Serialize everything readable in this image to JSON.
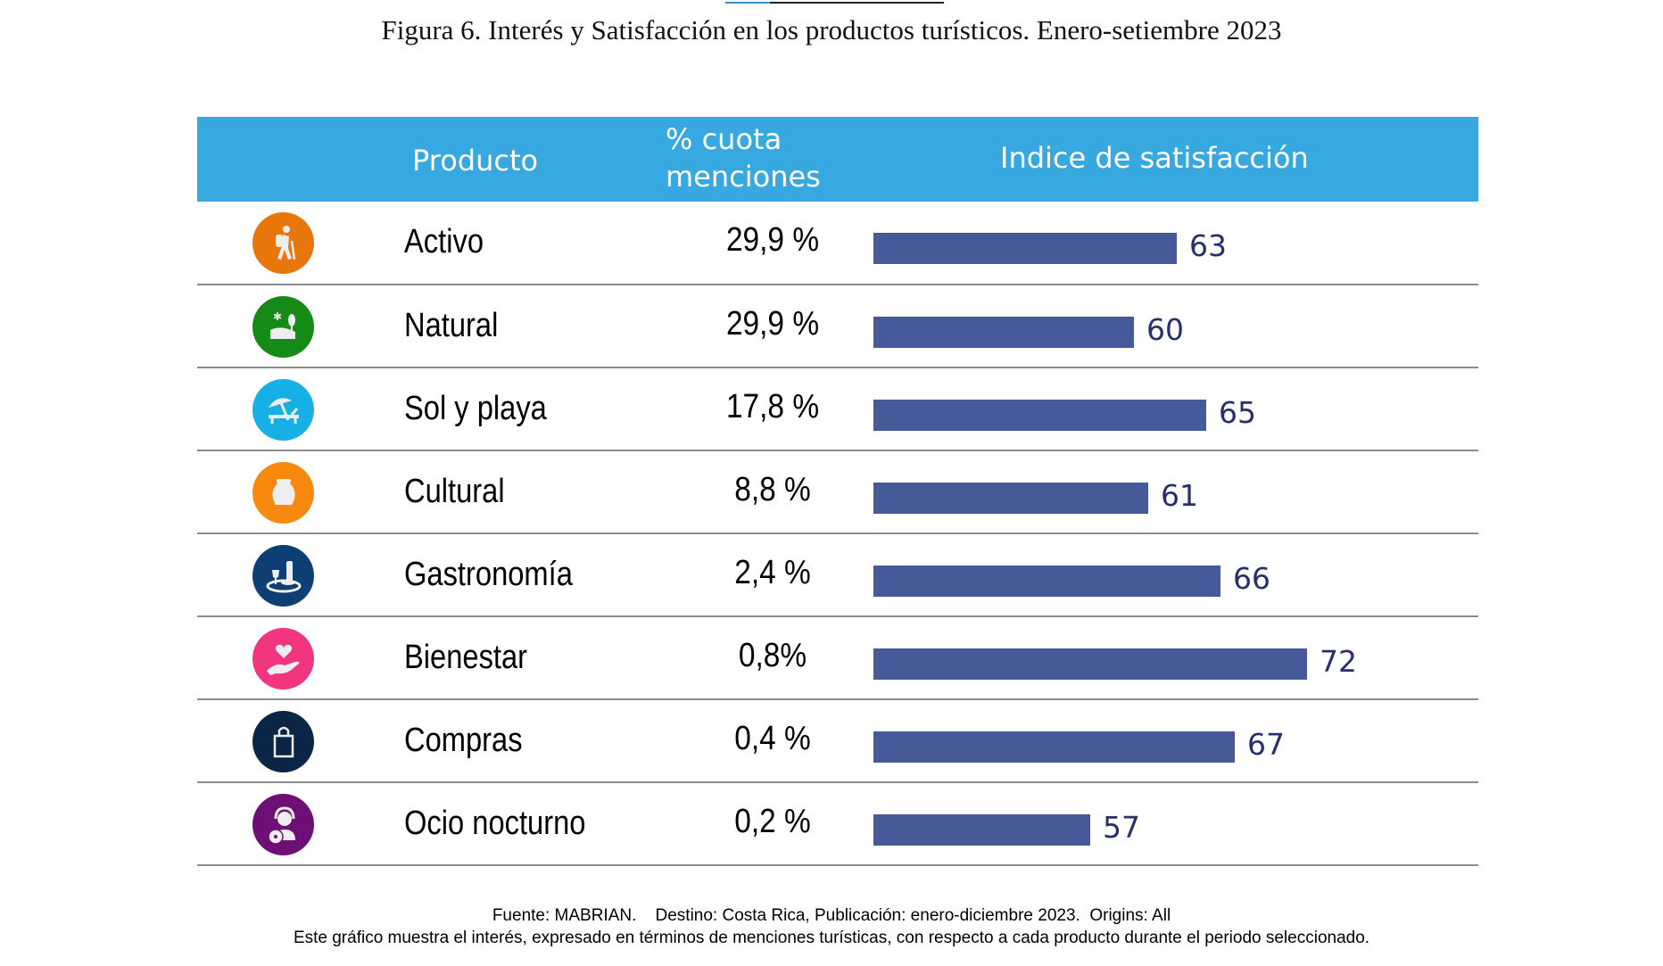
{
  "figure": {
    "title": "Figura 6. Interés y Satisfacción en los productos turísticos. Enero-setiembre 2023"
  },
  "table": {
    "headers": {
      "product": "Producto",
      "share_line1": "% cuota",
      "share_line2": "menciones",
      "satisfaction": "Indice de satisfacción"
    }
  },
  "chart_data": {
    "type": "bar",
    "orientation": "horizontal",
    "title": "Figura 6. Interés y Satisfacción en los productos turísticos. Enero-setiembre 2023",
    "xlabel": "Indice de satisfacción",
    "ylabel": "Producto",
    "xlim": [
      42,
      80
    ],
    "bar_color": "#465a9a",
    "label_color": "#27306b",
    "header_color": "#38a8e0",
    "categories": [
      "Activo",
      "Natural",
      "Sol y playa",
      "Cultural",
      "Gastronomía",
      "Bienestar",
      "Compras",
      "Ocio nocturno"
    ],
    "share_labels": [
      "29,9 %",
      "29,9 %",
      "17,8 %",
      "8,8 %",
      "2,4 %",
      "0,8%",
      "0,4 %",
      "0,2 %"
    ],
    "share_values": [
      29.9,
      29.9,
      17.8,
      8.8,
      2.4,
      0.8,
      0.4,
      0.2
    ],
    "values": [
      63,
      60,
      65,
      61,
      66,
      72,
      67,
      57
    ],
    "icons": [
      {
        "name": "hiker-icon",
        "color": "#e8760a"
      },
      {
        "name": "landscape-icon",
        "color": "#168a16"
      },
      {
        "name": "beach-umbrella-icon",
        "color": "#16b0e6"
      },
      {
        "name": "vase-icon",
        "color": "#f7890f"
      },
      {
        "name": "wine-dish-icon",
        "color": "#0d3f75"
      },
      {
        "name": "heart-hand-icon",
        "color": "#f2357f"
      },
      {
        "name": "shopping-bag-icon",
        "color": "#0b2547"
      },
      {
        "name": "dj-icon",
        "color": "#6d0f74"
      }
    ]
  },
  "footer": {
    "source": "Fuente: MABRIAN.    Destino: Costa Rica, Publicación: enero-diciembre 2023.  Origins: All",
    "note": "Este gráfico muestra el interés, expresado en términos de menciones turísticas, con respecto a cada producto durante el periodo seleccionado."
  }
}
